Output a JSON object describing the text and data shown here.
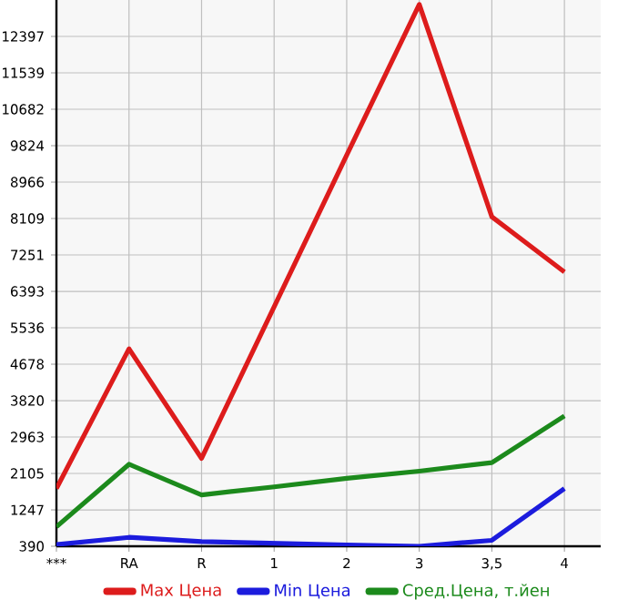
{
  "chart_data": {
    "type": "line",
    "categories": [
      "***",
      "RA",
      "R",
      "1",
      "2",
      "3",
      "3,5",
      "4"
    ],
    "series": [
      {
        "name": "Max Цена",
        "color": "#dd1c1c",
        "values": [
          1750,
          5040,
          2460,
          6030,
          9600,
          13150,
          8150,
          6850
        ]
      },
      {
        "name": "Min Цена",
        "color": "#1c1cdd",
        "values": [
          430,
          600,
          500,
          460,
          420,
          390,
          530,
          1750
        ]
      },
      {
        "name": "Сред.Цена, т.йен",
        "color": "#1c8a1c",
        "values": [
          850,
          2320,
          1600,
          1790,
          1990,
          2160,
          2360,
          3460
        ]
      }
    ],
    "ylim": [
      390,
      13255
    ],
    "yticks": [
      390,
      1247,
      2105,
      2963,
      3820,
      4678,
      5536,
      6393,
      7251,
      8109,
      8966,
      9824,
      10682,
      11539,
      12397
    ],
    "grid": true,
    "legend": "bottom",
    "marker": "none",
    "line_style": "solid"
  }
}
